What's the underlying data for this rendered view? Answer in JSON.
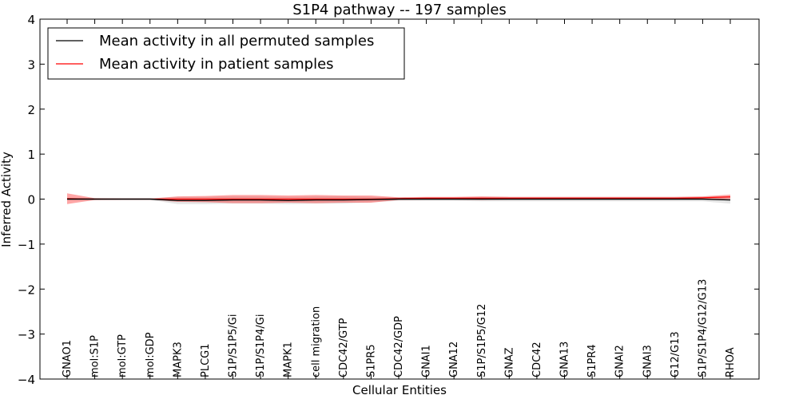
{
  "chart_data": {
    "type": "line",
    "title": "S1P4 pathway -- 197 samples",
    "xlabel": "Cellular Entities",
    "ylabel": "Inferred Activity",
    "ylim": [
      -4,
      4
    ],
    "yticks": [
      -4,
      -3,
      -2,
      -1,
      0,
      1,
      2,
      3,
      4
    ],
    "ytick_labels": [
      "−4",
      "−3",
      "−2",
      "−1",
      "0",
      "1",
      "2",
      "3",
      "4"
    ],
    "grid": false,
    "legend_position": "top-left",
    "categories": [
      "GNAO1",
      "mol:S1P",
      "mol:GTP",
      "mol:GDP",
      "MAPK3",
      "PLCG1",
      "S1P/S1P5/Gi",
      "S1P/S1P4/Gi",
      "MAPK1",
      "cell migration",
      "CDC42/GTP",
      "S1PR5",
      "CDC42/GDP",
      "GNAI1",
      "GNA12",
      "S1P/S1P5/G12",
      "GNAZ",
      "CDC42",
      "GNA13",
      "S1PR4",
      "GNAI2",
      "GNAI3",
      "G12/G13",
      "S1P/S1P4/G12/G13",
      "RHOA"
    ],
    "series": [
      {
        "name": "Mean activity in all permuted samples",
        "color": "#000000",
        "values": [
          0.0,
          0.0,
          0.0,
          0.0,
          -0.03,
          -0.03,
          -0.02,
          -0.02,
          -0.03,
          -0.02,
          -0.02,
          -0.01,
          0.0,
          0.0,
          0.0,
          0.0,
          0.0,
          0.0,
          0.0,
          0.0,
          0.0,
          0.0,
          0.0,
          0.0,
          -0.02
        ],
        "band": [
          0.02,
          0.02,
          0.02,
          0.02,
          0.08,
          0.08,
          0.08,
          0.08,
          0.08,
          0.08,
          0.08,
          0.06,
          0.04,
          0.04,
          0.04,
          0.05,
          0.05,
          0.05,
          0.05,
          0.05,
          0.05,
          0.05,
          0.05,
          0.05,
          0.08
        ]
      },
      {
        "name": "Mean activity in patient samples",
        "color": "#ff0000",
        "values": [
          0.01,
          0.0,
          0.0,
          0.0,
          0.0,
          0.0,
          0.0,
          0.0,
          0.0,
          0.0,
          0.0,
          0.0,
          0.01,
          0.02,
          0.02,
          0.02,
          0.02,
          0.02,
          0.02,
          0.02,
          0.02,
          0.02,
          0.02,
          0.03,
          0.05
        ],
        "band": [
          0.12,
          0.02,
          0.01,
          0.01,
          0.06,
          0.07,
          0.09,
          0.09,
          0.08,
          0.09,
          0.08,
          0.08,
          0.03,
          0.03,
          0.03,
          0.04,
          0.03,
          0.03,
          0.03,
          0.03,
          0.03,
          0.03,
          0.03,
          0.03,
          0.05
        ]
      }
    ]
  }
}
